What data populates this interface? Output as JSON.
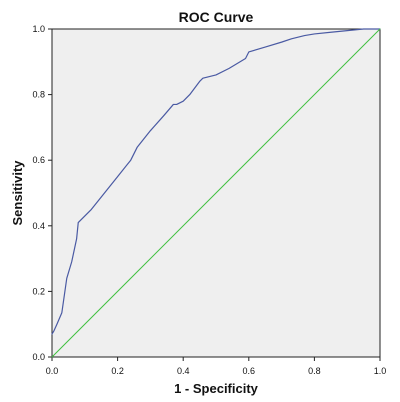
{
  "chart_data": {
    "type": "line",
    "title": "ROC Curve",
    "xlabel": "1 - Specificity",
    "ylabel": "Sensitivity",
    "xlim": [
      0.0,
      1.0
    ],
    "ylim": [
      0.0,
      1.0
    ],
    "x_ticks": [
      "0.0",
      "0.2",
      "0.4",
      "0.6",
      "0.8",
      "1.0"
    ],
    "y_ticks": [
      "0.0",
      "0.2",
      "0.4",
      "0.6",
      "0.8",
      "1.0"
    ],
    "grid": false,
    "legend": "none",
    "plot_background": "#efefef",
    "series": [
      {
        "color": "#4a5aa3",
        "x": [
          0.0,
          0.006,
          0.015,
          0.03,
          0.045,
          0.06,
          0.075,
          0.08,
          0.12,
          0.16,
          0.2,
          0.24,
          0.26,
          0.3,
          0.34,
          0.37,
          0.38,
          0.4,
          0.42,
          0.45,
          0.46,
          0.5,
          0.54,
          0.59,
          0.6,
          0.65,
          0.7,
          0.73,
          0.77,
          0.8,
          0.85,
          0.9,
          0.95,
          1.0
        ],
        "y": [
          0.07,
          0.08,
          0.1,
          0.135,
          0.24,
          0.29,
          0.36,
          0.41,
          0.45,
          0.5,
          0.55,
          0.6,
          0.64,
          0.69,
          0.735,
          0.77,
          0.77,
          0.78,
          0.8,
          0.84,
          0.85,
          0.86,
          0.88,
          0.91,
          0.93,
          0.945,
          0.96,
          0.97,
          0.98,
          0.985,
          0.99,
          0.995,
          1.0,
          1.0
        ]
      },
      {
        "color": "#40c040",
        "x": [
          0.0,
          1.0
        ],
        "y": [
          0.0,
          1.0
        ]
      }
    ]
  }
}
